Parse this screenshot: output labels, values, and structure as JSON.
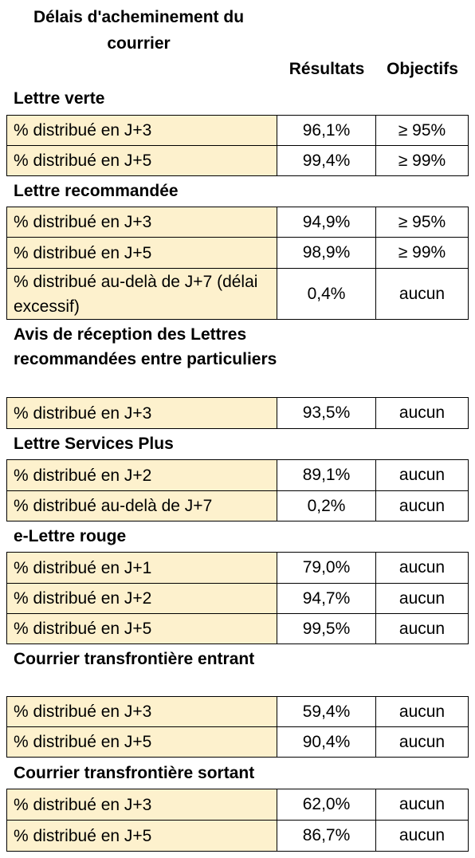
{
  "title": "Délais d'acheminement du courrier",
  "headers": {
    "results": "Résultats",
    "objectives": "Objectifs"
  },
  "sections": [
    {
      "name": "Lettre verte",
      "rows": [
        {
          "label": "% distribué en J+3",
          "result": "96,1%",
          "objective": "≥ 95%"
        },
        {
          "label": "% distribué en J+5",
          "result": "99,4%",
          "objective": "≥ 99%"
        }
      ]
    },
    {
      "name": "Lettre recommandée",
      "rows": [
        {
          "label": "% distribué en J+3",
          "result": "94,9%",
          "objective": "≥ 95%"
        },
        {
          "label": "% distribué en J+5",
          "result": "98,9%",
          "objective": "≥ 99%"
        },
        {
          "label": "% distribué au-delà de J+7 (délai excessif)",
          "result": "0,4%",
          "objective": "aucun"
        }
      ]
    },
    {
      "name": "Avis de réception des Lettres recommandées entre particuliers",
      "rows": [
        {
          "label": "% distribué en J+3",
          "result": "93,5%",
          "objective": "aucun"
        }
      ]
    },
    {
      "name": "Lettre Services Plus",
      "rows": [
        {
          "label": "% distribué en J+2",
          "result": "89,1%",
          "objective": "aucun"
        },
        {
          "label": "% distribué au-delà de J+7",
          "result": "0,2%",
          "objective": "aucun"
        }
      ]
    },
    {
      "name": "e-Lettre rouge",
      "rows": [
        {
          "label": "% distribué en J+1",
          "result": "79,0%",
          "objective": "aucun"
        },
        {
          "label": "% distribué en J+2",
          "result": "94,7%",
          "objective": "aucun"
        },
        {
          "label": "% distribué en J+5",
          "result": "99,5%",
          "objective": "aucun"
        }
      ]
    },
    {
      "name": "Courrier transfrontière entrant",
      "rows": [
        {
          "label": "% distribué en J+3",
          "result": "59,4%",
          "objective": "aucun"
        },
        {
          "label": "% distribué en J+5",
          "result": "90,4%",
          "objective": "aucun"
        }
      ]
    },
    {
      "name": "Courrier transfrontière sortant",
      "rows": [
        {
          "label": "% distribué en J+3",
          "result": "62,0%",
          "objective": "aucun"
        },
        {
          "label": "% distribué en J+5",
          "result": "86,7%",
          "objective": "aucun"
        }
      ]
    }
  ]
}
